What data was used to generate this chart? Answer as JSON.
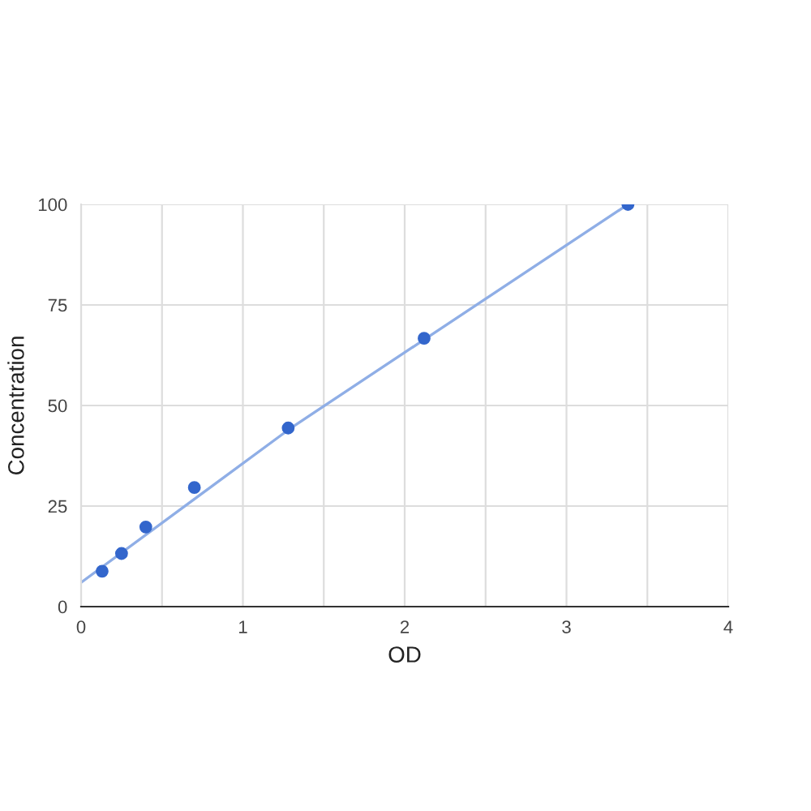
{
  "chart_data": {
    "type": "scatter",
    "xlabel": "OD",
    "ylabel": "Concentration",
    "series": [
      {
        "color": "#3366cc",
        "marker": "circle",
        "x": [
          0.13,
          0.25,
          0.4,
          0.7,
          1.28,
          2.12,
          3.38
        ],
        "values": [
          8.8,
          13.2,
          19.8,
          29.6,
          44.4,
          66.7,
          100
        ]
      },
      {
        "type": "line",
        "color": "#8faee6",
        "marker": "none",
        "x": [
          0,
          1.3,
          3.38
        ],
        "values": [
          6,
          44.5,
          100
        ]
      }
    ],
    "xlim": [
      0,
      4
    ],
    "ylim": [
      0,
      100
    ],
    "xticks": [
      0,
      {
        "value": 0.5,
        "label": null
      },
      1,
      {
        "value": 1.5,
        "label": null
      },
      2,
      {
        "value": 2.5,
        "label": null
      },
      3,
      {
        "value": 3.5,
        "label": null
      },
      4
    ],
    "yticks": [
      0,
      25,
      50,
      75,
      100
    ],
    "grid": true,
    "legend": false
  }
}
